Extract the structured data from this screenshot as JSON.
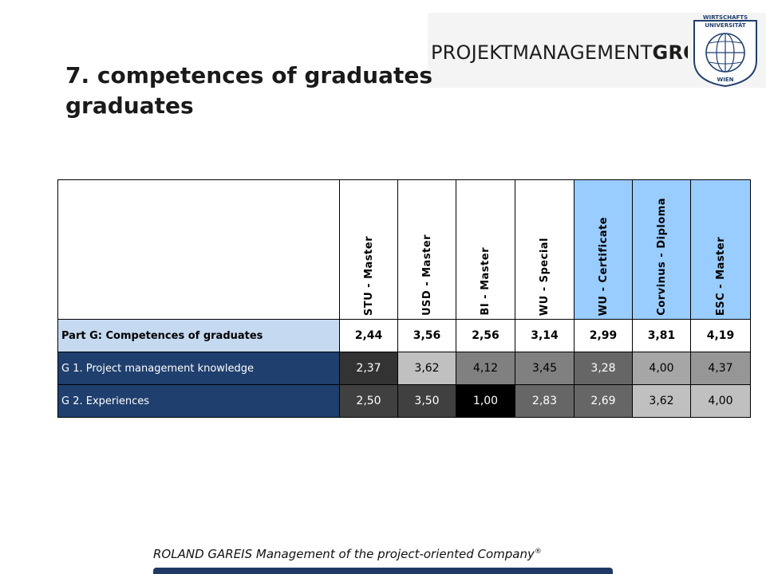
{
  "header": {
    "logo_text_regular": "PROJEKTMANAGEMENT",
    "logo_text_bold": "GROUP",
    "seal_top": "WIRTSCHAFTS UNIVERSITÄT",
    "seal_bottom": "WIEN"
  },
  "title": {
    "line1": "7. competences of graduates",
    "line2": "graduates"
  },
  "table": {
    "columns": [
      "STU - Master",
      "USD - Master",
      "BI - Master",
      "WU - Special",
      "WU - Certificate",
      "Corvinus - Diploma",
      "ESC - Master"
    ],
    "rows": [
      {
        "label": "Part G: Competences of graduates",
        "values": [
          "2,44",
          "3,56",
          "2,56",
          "3,14",
          "2,99",
          "3,81",
          "4,19"
        ]
      },
      {
        "label": "G 1. Project management knowledge",
        "values": [
          "2,37",
          "3,62",
          "4,12",
          "3,45",
          "3,28",
          "4,00",
          "4,37"
        ]
      },
      {
        "label": "G 2. Experiences",
        "values": [
          "2,50",
          "3,50",
          "1,00",
          "2,83",
          "2,69",
          "3,62",
          "4,00"
        ]
      }
    ],
    "highlight_columns_color": "#99ccff",
    "section_row_color": "#c5d9f1",
    "detail_label_color": "#1f3f6e"
  },
  "footer": {
    "text": "ROLAND GAREIS Management of the project-oriented Company",
    "registered": "®"
  }
}
